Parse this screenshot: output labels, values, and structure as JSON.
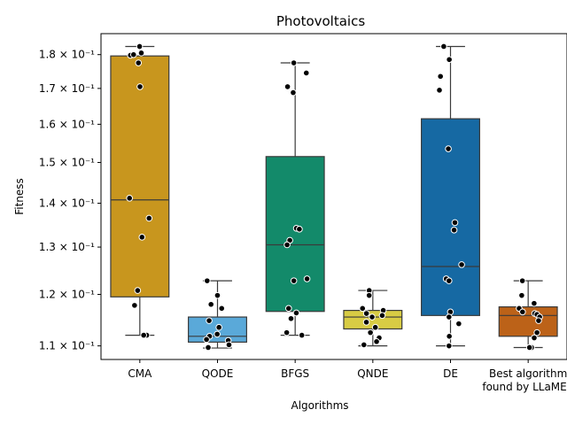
{
  "chart_data": {
    "type": "box",
    "title": "Photovoltaics",
    "xlabel": "Algorithms",
    "ylabel": "Fitness",
    "yscale": "log",
    "ylim": [
      0.1075,
      0.1865
    ],
    "yticks": [
      {
        "value": 0.11,
        "label": "1.1 × 10⁻¹"
      },
      {
        "value": 0.12,
        "label": "1.2 × 10⁻¹"
      },
      {
        "value": 0.13,
        "label": "1.3 × 10⁻¹"
      },
      {
        "value": 0.14,
        "label": "1.4 × 10⁻¹"
      },
      {
        "value": 0.15,
        "label": "1.5 × 10⁻¹"
      },
      {
        "value": 0.16,
        "label": "1.6 × 10⁻¹"
      },
      {
        "value": 0.17,
        "label": "1.7 × 10⁻¹"
      },
      {
        "value": 0.18,
        "label": "1.8 × 10⁻¹"
      }
    ],
    "grid": false,
    "categories": [
      {
        "label": [
          "CMA"
        ],
        "color": "#c8961e",
        "box": {
          "q1": 0.1195,
          "median": 0.1408,
          "q3": 0.1796,
          "whisker_low": 0.112,
          "whisker_high": 0.1825
        },
        "points": [
          0.1825,
          0.1805,
          0.1798,
          0.18,
          0.1775,
          0.1705,
          0.1412,
          0.1365,
          0.1322,
          0.1208,
          0.1178,
          0.112,
          0.112
        ]
      },
      {
        "label": [
          "QODE"
        ],
        "color": "#5aa9d9",
        "box": {
          "q1": 0.1107,
          "median": 0.1118,
          "q3": 0.1155,
          "whisker_low": 0.1096,
          "whisker_high": 0.1228
        },
        "points": [
          0.1228,
          0.1198,
          0.118,
          0.1172,
          0.1148,
          0.1135,
          0.1122,
          0.1118,
          0.1112,
          0.111,
          0.1102,
          0.1097
        ]
      },
      {
        "label": [
          "BFGS"
        ],
        "color": "#138a6a",
        "box": {
          "q1": 0.1166,
          "median": 0.1305,
          "q3": 0.1515,
          "whisker_low": 0.112,
          "whisker_high": 0.1775
        },
        "points": [
          0.1775,
          0.1745,
          0.1705,
          0.1688,
          0.1342,
          0.134,
          0.1315,
          0.1305,
          0.1232,
          0.1228,
          0.1172,
          0.1163,
          0.1152,
          0.1125,
          0.112
        ]
      },
      {
        "label": [
          "QNDE"
        ],
        "color": "#d8cc44",
        "box": {
          "q1": 0.1132,
          "median": 0.1155,
          "q3": 0.1168,
          "whisker_low": 0.11,
          "whisker_high": 0.1208
        },
        "points": [
          0.1208,
          0.1198,
          0.1172,
          0.1168,
          0.1162,
          0.1158,
          0.1155,
          0.1145,
          0.1135,
          0.1125,
          0.1115,
          0.1108,
          0.1102
        ]
      },
      {
        "label": [
          "DE"
        ],
        "color": "#1669a3",
        "box": {
          "q1": 0.1158,
          "median": 0.1258,
          "q3": 0.1615,
          "whisker_low": 0.11,
          "whisker_high": 0.1825
        },
        "points": [
          0.1825,
          0.1785,
          0.1735,
          0.1695,
          0.1535,
          0.1355,
          0.1338,
          0.1262,
          0.1232,
          0.1228,
          0.1165,
          0.1155,
          0.1142,
          0.1118,
          0.11
        ]
      },
      {
        "label": [
          "Best algorithm",
          "found by LLaMEA"
        ],
        "color": "#bc6218",
        "box": {
          "q1": 0.1118,
          "median": 0.1158,
          "q3": 0.1175,
          "whisker_low": 0.1097,
          "whisker_high": 0.1228
        },
        "points": [
          0.1228,
          0.1198,
          0.1182,
          0.1172,
          0.1165,
          0.1162,
          0.116,
          0.1155,
          0.1148,
          0.1125,
          0.1115,
          0.1097,
          0.1097
        ]
      }
    ]
  }
}
